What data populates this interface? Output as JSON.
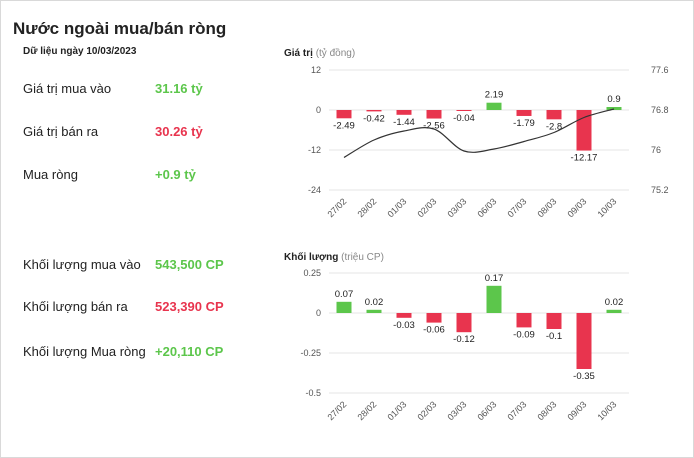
{
  "header": {
    "title": "Nước ngoài mua/bán ròng",
    "date_label": "Dữ liệu ngày 10/03/2023"
  },
  "stats": [
    {
      "label": "Giá trị mua vào",
      "value": "31.16 tỷ",
      "tone": "pos"
    },
    {
      "label": "Giá trị bán ra",
      "value": "30.26 tỷ",
      "tone": "neg"
    },
    {
      "label": "Mua ròng",
      "value": "+0.9 tỷ",
      "tone": "pos"
    },
    {
      "label": "Khối lượng mua vào",
      "value": "543,500 CP",
      "tone": "pos"
    },
    {
      "label": "Khối lượng bán ra",
      "value": "523,390 CP",
      "tone": "neg"
    },
    {
      "label": "Khối lượng Mua ròng",
      "value": "+20,110 CP",
      "tone": "pos"
    }
  ],
  "colors": {
    "positive": "#5cc64b",
    "negative": "#e8344e",
    "line": "#333333",
    "grid": "#e6e6e6"
  },
  "chart_data": [
    {
      "type": "bar",
      "title": "Giá trị",
      "unit": "(tỷ đồng)",
      "categories": [
        "27/02",
        "28/02",
        "01/03",
        "02/03",
        "03/03",
        "06/03",
        "07/03",
        "08/03",
        "09/03",
        "10/03"
      ],
      "values": [
        -2.49,
        -0.42,
        -1.44,
        -2.56,
        -0.04,
        2.19,
        -1.79,
        -2.8,
        -12.17,
        0.9
      ],
      "value_labels": [
        "-2.49",
        "-0.42",
        "-1.44",
        "-2.56",
        "-0.04",
        "2.19",
        "-1.79",
        "-2.8",
        "-12.17",
        "0.9"
      ],
      "y_ticks": [
        12,
        0,
        -12,
        -24
      ],
      "ylim": [
        -24,
        12
      ],
      "y2_ticks": [
        77.6,
        76.8,
        76,
        75.2
      ],
      "y2lim": [
        75.2,
        77.6
      ],
      "line_series": {
        "values": [
          75.85,
          76.2,
          76.38,
          76.42,
          75.98,
          76.02,
          76.17,
          76.35,
          76.65,
          76.82
        ]
      }
    },
    {
      "type": "bar",
      "title": "Khối lượng",
      "unit": "(triệu CP)",
      "categories": [
        "27/02",
        "28/02",
        "01/03",
        "02/03",
        "03/03",
        "06/03",
        "07/03",
        "08/03",
        "09/03",
        "10/03"
      ],
      "values": [
        0.07,
        0.02,
        -0.03,
        -0.06,
        -0.12,
        0.17,
        -0.09,
        -0.1,
        -0.35,
        0.02
      ],
      "value_labels": [
        "0.07",
        "0.02",
        "-0.03",
        "-0.06",
        "-0.12",
        "0.17",
        "-0.09",
        "-0.1",
        "-0.35",
        "0.02"
      ],
      "y_ticks": [
        "0.25",
        "0",
        "-0.25",
        "-0.5"
      ],
      "y_tick_values": [
        0.25,
        0,
        -0.25,
        -0.5
      ],
      "ylim": [
        -0.5,
        0.25
      ]
    }
  ]
}
